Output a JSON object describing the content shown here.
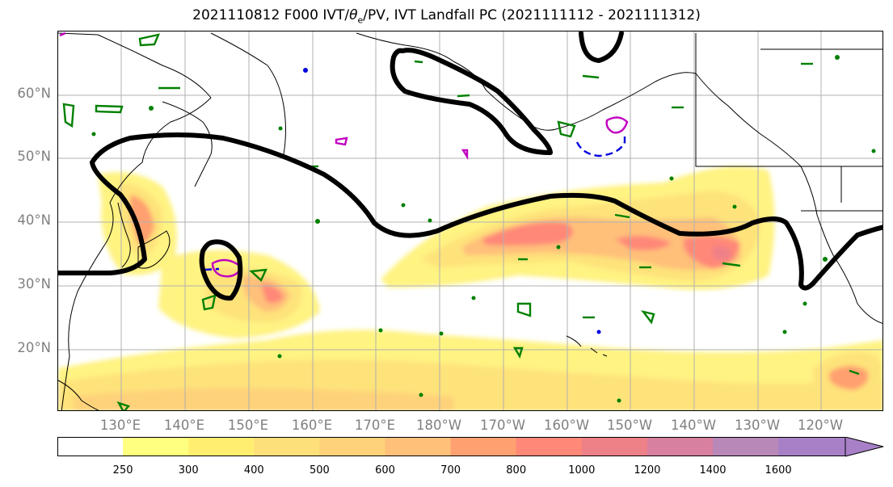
{
  "title": {
    "pre": "2021110812 F000 IVT/",
    "theta": "θ",
    "sub": "e",
    "post": "/PV, IVT Landfall PC (2021111112 - 2021111312)"
  },
  "map": {
    "lat_labels": [
      "60°N",
      "50°N",
      "40°N",
      "30°N",
      "20°N"
    ],
    "lon_labels": [
      "130°E",
      "140°E",
      "150°E",
      "160°E",
      "170°E",
      "180°W",
      "170°W",
      "160°W",
      "150°W",
      "140°W",
      "130°W",
      "120°W"
    ],
    "colors": {
      "coastline": "#000000",
      "pv_contour": "#000000",
      "theta_e_positive": "#008000",
      "theta_e_magenta": "#c000c0",
      "theta_e_blue": "#0000e0",
      "grid": "#b0b0b0"
    }
  },
  "colorbar": {
    "levels": [
      "250",
      "300",
      "400",
      "500",
      "600",
      "700",
      "800",
      "1000",
      "1200",
      "1400",
      "1600"
    ],
    "colors": [
      "#ffffff",
      "#ffff80",
      "#ffee70",
      "#fee07a",
      "#fed27a",
      "#ffc07a",
      "#ffa070",
      "#ff8878",
      "#ee8088",
      "#d880a0",
      "#b888b8",
      "#a880c8"
    ]
  }
}
